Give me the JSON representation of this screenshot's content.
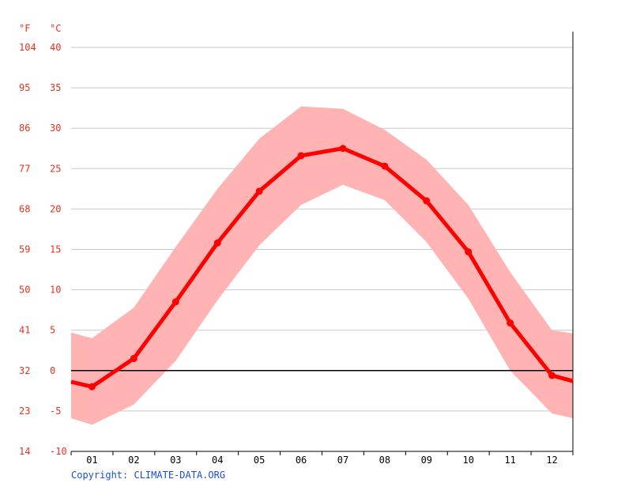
{
  "chart_data": {
    "type": "line",
    "title": "",
    "xlabel": "",
    "ylabel": "",
    "unit_labels": {
      "fahrenheit": "°F",
      "celsius": "°C"
    },
    "categories": [
      "01",
      "02",
      "03",
      "04",
      "05",
      "06",
      "07",
      "08",
      "09",
      "10",
      "11",
      "12"
    ],
    "ylim": [
      -10,
      40
    ],
    "y_ticks_celsius": [
      -10,
      -5,
      0,
      5,
      10,
      15,
      20,
      25,
      30,
      35,
      40
    ],
    "y_ticks_fahrenheit": [
      14,
      23,
      32,
      41,
      50,
      59,
      68,
      77,
      86,
      95,
      104
    ],
    "grid": true,
    "series": [
      {
        "values": [
          -2.0,
          1.5,
          8.5,
          15.8,
          22.2,
          26.6,
          27.5,
          25.3,
          21.0,
          14.7,
          5.9,
          -0.6
        ]
      },
      {
        "values": [
          4.0,
          7.8,
          15.3,
          22.5,
          28.7,
          32.7,
          32.4,
          29.8,
          26.1,
          20.5,
          12.2,
          5.0
        ]
      },
      {
        "values": [
          -6.7,
          -4.2,
          1.2,
          8.7,
          15.5,
          20.5,
          23.0,
          21.1,
          15.9,
          8.9,
          0.0,
          -5.3
        ]
      }
    ],
    "edges": {
      "left": [
        -1.4,
        4.7,
        -5.9
      ],
      "right": [
        -1.3,
        4.6,
        -5.9
      ]
    },
    "colors": {
      "mean_line": "#ff0000",
      "range_band": "#ffb3b3",
      "axis_text": "#e8321e",
      "grid": "#c8c8c8",
      "zero_line": "#000000"
    }
  },
  "copyright": "Copyright: CLIMATE-DATA.ORG"
}
